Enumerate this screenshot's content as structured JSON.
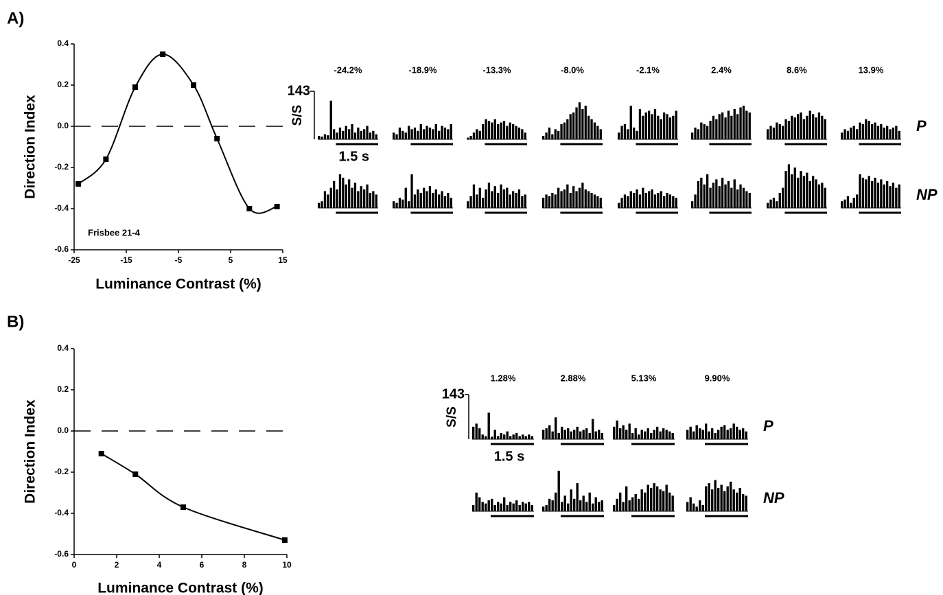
{
  "chart_data": [
    {
      "type": "line",
      "panel_label": "A)",
      "xlabel": "Luminance Contrast (%)",
      "ylabel": "Direction Index",
      "annotation": "Frisbee 21-4",
      "x": [
        -24.2,
        -18.9,
        -13.3,
        -8.0,
        -2.1,
        2.4,
        8.6,
        13.9
      ],
      "values": [
        -0.28,
        -0.16,
        0.19,
        0.35,
        0.2,
        -0.06,
        -0.4,
        -0.39
      ],
      "color": "#000000",
      "xlim": [
        -25,
        15
      ],
      "xticks": [
        -25,
        -15,
        -5,
        5,
        15
      ],
      "ylim": [
        -0.6,
        0.4
      ],
      "yticks": [
        0.4,
        0.2,
        {
          "value": 0,
          "label": "0.0"
        },
        -0.2,
        -0.4,
        -0.6
      ],
      "reference_line": 0
    },
    {
      "type": "psth",
      "ylabel": "S/S",
      "scale_label": "1.5 s",
      "ylim": [
        0,
        143
      ],
      "yticks": [
        143
      ],
      "conditions": [
        "-24.2%",
        "-18.9%",
        "-13.3%",
        "-8.0%",
        "-2.1%",
        "2.4%",
        "8.6%",
        "13.9%"
      ],
      "rows": [
        {
          "name": "P",
          "panels": [
            [
              10,
              8,
              15,
              12,
              115,
              30,
              20,
              35,
              25,
              40,
              30,
              45,
              20,
              35,
              25,
              30,
              40,
              20,
              25,
              15
            ],
            [
              20,
              15,
              35,
              25,
              20,
              40,
              30,
              35,
              25,
              45,
              30,
              40,
              35,
              30,
              45,
              25,
              40,
              35,
              30,
              45
            ],
            [
              5,
              10,
              20,
              30,
              25,
              45,
              60,
              55,
              50,
              60,
              45,
              50,
              55,
              40,
              50,
              45,
              40,
              35,
              30,
              20
            ],
            [
              10,
              20,
              35,
              15,
              30,
              25,
              45,
              50,
              60,
              75,
              80,
              95,
              110,
              90,
              100,
              70,
              60,
              50,
              40,
              30
            ],
            [
              20,
              40,
              45,
              30,
              100,
              35,
              25,
              90,
              70,
              80,
              85,
              75,
              90,
              70,
              60,
              80,
              75,
              65,
              70,
              85
            ],
            [
              20,
              35,
              30,
              50,
              45,
              40,
              55,
              70,
              60,
              75,
              80,
              65,
              85,
              70,
              90,
              75,
              95,
              100,
              85,
              80
            ],
            [
              30,
              40,
              35,
              50,
              45,
              40,
              60,
              55,
              70,
              65,
              75,
              80,
              60,
              70,
              85,
              75,
              65,
              80,
              70,
              60
            ],
            [
              20,
              30,
              25,
              35,
              40,
              30,
              50,
              45,
              60,
              55,
              45,
              50,
              40,
              45,
              35,
              40,
              30,
              35,
              40,
              25
            ]
          ]
        },
        {
          "name": "NP",
          "panels": [
            [
              15,
              20,
              50,
              40,
              60,
              80,
              55,
              100,
              90,
              70,
              85,
              60,
              75,
              50,
              65,
              55,
              70,
              45,
              50,
              40
            ],
            [
              20,
              15,
              30,
              25,
              60,
              20,
              100,
              40,
              55,
              45,
              60,
              50,
              65,
              45,
              55,
              40,
              50,
              35,
              45,
              30
            ],
            [
              20,
              35,
              70,
              40,
              60,
              30,
              55,
              75,
              50,
              65,
              45,
              70,
              55,
              60,
              40,
              50,
              45,
              55,
              35,
              40
            ],
            [
              30,
              40,
              35,
              45,
              40,
              60,
              50,
              55,
              70,
              45,
              65,
              50,
              60,
              75,
              55,
              50,
              45,
              40,
              35,
              30
            ],
            [
              15,
              30,
              40,
              35,
              50,
              45,
              55,
              40,
              60,
              45,
              50,
              55,
              40,
              45,
              50,
              35,
              45,
              40,
              35,
              30
            ],
            [
              20,
              40,
              80,
              90,
              70,
              100,
              60,
              75,
              85,
              65,
              90,
              70,
              80,
              60,
              85,
              55,
              70,
              60,
              50,
              45
            ],
            [
              15,
              25,
              30,
              20,
              45,
              60,
              110,
              130,
              100,
              120,
              90,
              110,
              95,
              105,
              80,
              95,
              85,
              70,
              75,
              60
            ],
            [
              20,
              25,
              35,
              15,
              30,
              40,
              100,
              90,
              85,
              95,
              80,
              90,
              75,
              85,
              70,
              80,
              65,
              75,
              60,
              70
            ]
          ]
        }
      ]
    },
    {
      "type": "line",
      "panel_label": "B)",
      "xlabel": "Luminance Contrast (%)",
      "ylabel": "Direction Index",
      "x": [
        1.28,
        2.88,
        5.13,
        9.9
      ],
      "values": [
        -0.11,
        -0.21,
        -0.37,
        -0.53
      ],
      "color": "#000000",
      "xlim": [
        0,
        10
      ],
      "xticks": [
        0,
        2,
        4,
        6,
        8,
        10
      ],
      "ylim": [
        -0.6,
        0.4
      ],
      "yticks": [
        0.4,
        0.2,
        {
          "value": 0,
          "label": "0.0"
        },
        -0.2,
        -0.4,
        -0.6
      ],
      "reference_line": 0
    },
    {
      "type": "psth",
      "ylabel": "S/S",
      "scale_label": "1.5 s",
      "ylim": [
        0,
        143
      ],
      "yticks": [
        143
      ],
      "conditions": [
        "1.28%",
        "2.88%",
        "5.13%",
        "9.90%"
      ],
      "rows": [
        {
          "name": "P",
          "panels": [
            [
              40,
              50,
              35,
              15,
              10,
              85,
              8,
              30,
              10,
              20,
              15,
              25,
              10,
              15,
              20,
              10,
              15,
              10,
              15,
              10
            ],
            [
              30,
              35,
              45,
              25,
              70,
              20,
              40,
              30,
              35,
              25,
              30,
              40,
              25,
              30,
              35,
              20,
              65,
              25,
              30,
              20
            ],
            [
              40,
              60,
              35,
              45,
              30,
              50,
              20,
              35,
              15,
              30,
              25,
              35,
              20,
              30,
              40,
              25,
              35,
              30,
              25,
              20
            ],
            [
              30,
              40,
              25,
              45,
              35,
              30,
              50,
              25,
              35,
              20,
              30,
              40,
              45,
              30,
              35,
              50,
              40,
              30,
              35,
              25
            ]
          ]
        },
        {
          "name": "NP",
          "panels": [
            [
              20,
              60,
              45,
              30,
              25,
              35,
              40,
              20,
              30,
              25,
              45,
              20,
              30,
              25,
              35,
              20,
              30,
              25,
              30,
              20
            ],
            [
              15,
              20,
              40,
              35,
              60,
              130,
              30,
              50,
              25,
              70,
              40,
              90,
              35,
              50,
              30,
              60,
              25,
              45,
              30,
              35
            ],
            [
              20,
              40,
              60,
              30,
              80,
              35,
              45,
              55,
              40,
              70,
              60,
              85,
              75,
              90,
              80,
              70,
              65,
              85,
              60,
              50
            ],
            [
              30,
              45,
              25,
              15,
              35,
              20,
              80,
              90,
              70,
              100,
              75,
              85,
              65,
              80,
              95,
              70,
              60,
              75,
              55,
              50
            ]
          ]
        }
      ]
    }
  ]
}
